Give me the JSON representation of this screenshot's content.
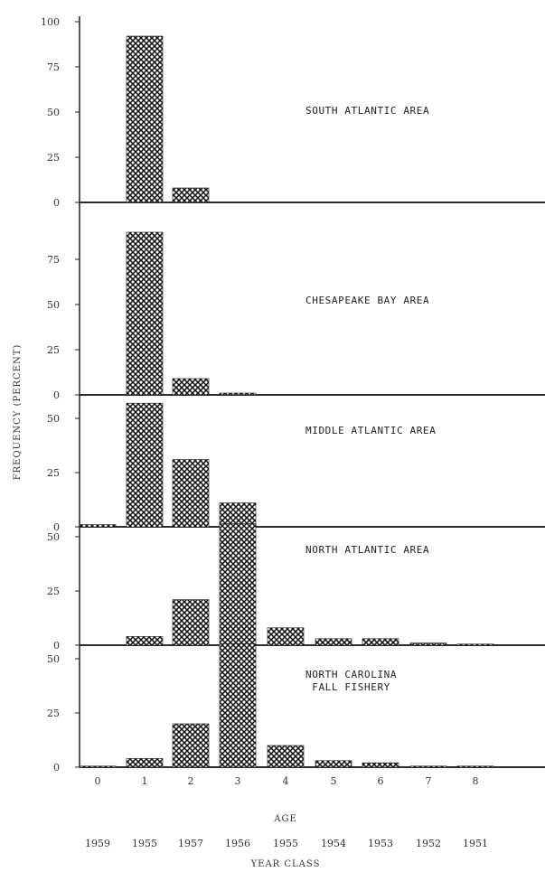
{
  "chart_data": {
    "type": "bar",
    "ylabel": "FREQUENCY (PERCENT)",
    "xlabel": "AGE",
    "xlabel2": "YEAR CLASS",
    "ages": [
      "0",
      "1",
      "2",
      "3",
      "4",
      "5",
      "6",
      "7",
      "8"
    ],
    "year_classes": [
      "1959",
      "1955",
      "1957",
      "1956",
      "1955",
      "1954",
      "1953",
      "1952",
      "1951"
    ],
    "panels": [
      {
        "title": "SOUTH ATLANTIC AREA",
        "y_ticks": [
          "100",
          "75",
          "50",
          "25",
          "0"
        ],
        "ylim": [
          0,
          100
        ],
        "values": [
          0,
          92,
          8,
          0,
          0,
          0,
          0,
          0,
          0
        ]
      },
      {
        "title": "CHESAPEAKE BAY AREA",
        "y_ticks": [
          "75",
          "50",
          "25",
          "0"
        ],
        "ylim": [
          0,
          100
        ],
        "values": [
          0,
          90,
          9,
          1,
          0,
          0,
          0,
          0,
          0
        ]
      },
      {
        "title": "MIDDLE ATLANTIC AREA",
        "y_ticks": [
          "50",
          "25",
          "0"
        ],
        "ylim": [
          0,
          65
        ],
        "values": [
          1,
          57,
          31,
          11,
          0,
          0,
          0,
          0,
          0
        ]
      },
      {
        "title": "NORTH ATLANTIC AREA",
        "y_ticks": [
          "50",
          "25",
          "0"
        ],
        "ylim": [
          0,
          65
        ],
        "values": [
          0,
          4,
          21,
          56,
          8,
          3,
          3,
          1,
          0.5
        ]
      },
      {
        "title": "NORTH CAROLINA\n    FALL FISHERY",
        "y_ticks": [
          "50",
          "25",
          "0"
        ],
        "ylim": [
          0,
          65
        ],
        "values": [
          0.5,
          4,
          20,
          57,
          10,
          3,
          2,
          0.5,
          0.5
        ]
      }
    ]
  }
}
